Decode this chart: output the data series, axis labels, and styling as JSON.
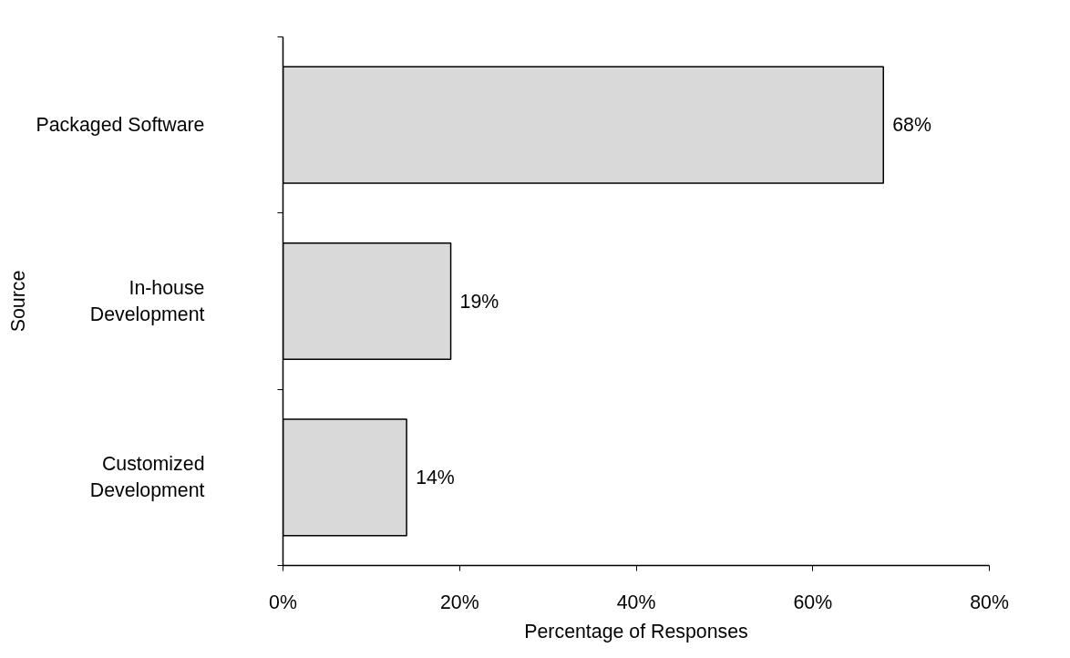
{
  "chart_data": {
    "type": "bar",
    "orientation": "horizontal",
    "categories": [
      "Packaged Software",
      "In-house\nDevelopment",
      "Customized\nDevelopment"
    ],
    "values": [
      68,
      19,
      14
    ],
    "value_labels": [
      "68%",
      "19%",
      "14%"
    ],
    "color": "#d9d9d9",
    "xlim": [
      0,
      80
    ],
    "xticks": [
      {
        "value": 0,
        "label": "0%"
      },
      {
        "value": 20,
        "label": "20%"
      },
      {
        "value": 40,
        "label": "40%"
      },
      {
        "value": 60,
        "label": "60%"
      },
      {
        "value": 80,
        "label": "80%"
      }
    ],
    "xlabel": "Percentage of Responses",
    "ylabel": "Source",
    "grid": false
  }
}
